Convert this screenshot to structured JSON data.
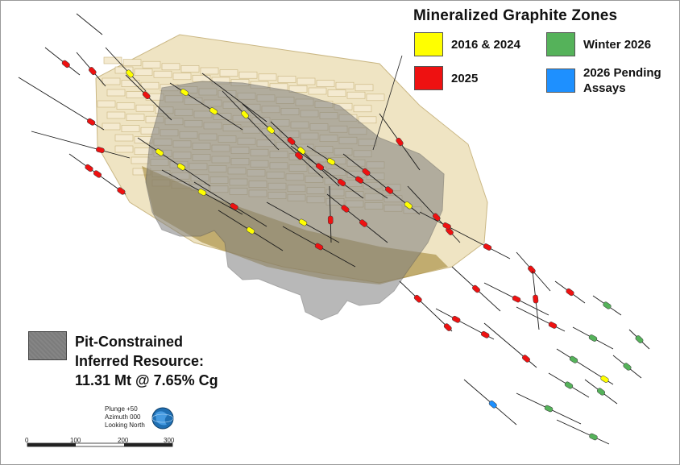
{
  "legend": {
    "title": "Mineralized Graphite Zones",
    "items": [
      {
        "label": "2016 & 2024",
        "color": "#ffff00"
      },
      {
        "label": "2025",
        "color": "#ee1111"
      },
      {
        "label": "Winter 2026",
        "color": "#55b25a"
      },
      {
        "label": "2026 Pending\nAssays",
        "color": "#1e90ff"
      }
    ]
  },
  "resource": {
    "line1": "Pit-Constrained",
    "line2": "Inferred Resource:",
    "line3": "11.31 Mt @ 7.65% Cg",
    "fill_color": "#808080"
  },
  "view": {
    "plunge": "Plunge +50",
    "azimuth": "Azimuth 000",
    "looking": "Looking North",
    "icon": "globe-orientation-icon"
  },
  "scale_bar": {
    "ticks": [
      "0",
      "100",
      "200",
      "300"
    ]
  },
  "colors": {
    "block_model_fill": "#efe3c0",
    "block_model_edge": "#c8b47e",
    "pit_shell": "#7f7f7f",
    "drillhole_trace": "#1a1a1a",
    "mineralized_floor": "#9a7d2a"
  }
}
